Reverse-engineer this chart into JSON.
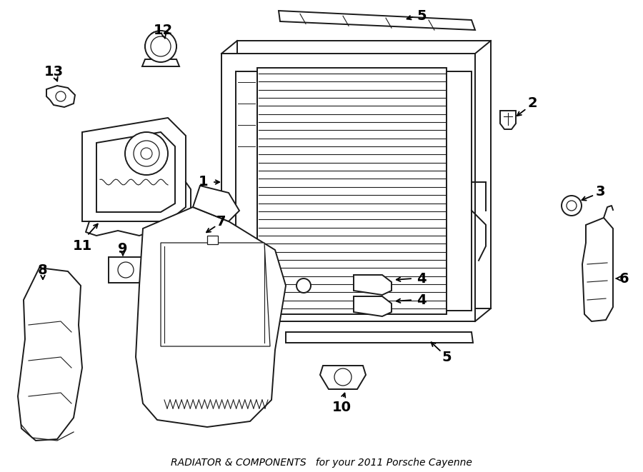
{
  "title": "RADIATOR & COMPONENTS",
  "subtitle": "for your 2011 Porsche Cayenne",
  "bg": "#ffffff",
  "lc": "#1a1a1a",
  "fig_w": 9.0,
  "fig_h": 6.61,
  "dpi": 100
}
